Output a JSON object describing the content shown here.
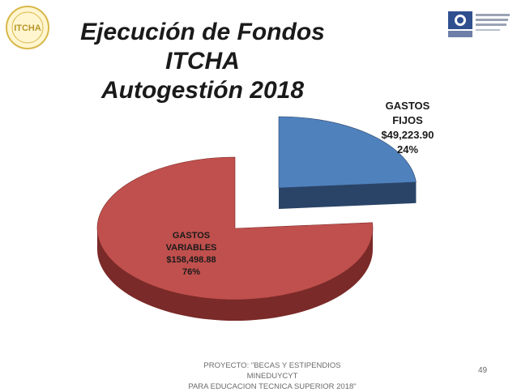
{
  "slide": {
    "title_line1": "Ejecución de Fondos ITCHA",
    "title_line2": "Autogestión 2018",
    "footer_line1": "PROYECTO: \"BECAS Y ESTIPENDIOS MINEDUYCYT",
    "footer_line2": "PARA EDUCACION TECNICA SUPERIOR 2018\"",
    "page_number": "49",
    "logo_left_text": "ITCHA"
  },
  "chart_data": {
    "type": "pie",
    "title": "",
    "slices": [
      {
        "label_line1": "GASTOS",
        "label_line2": "FIJOS",
        "value": 49223.9,
        "value_label": "$49,223.90",
        "percent_label": "24%",
        "color": "#4f81bd",
        "dark": "#2a4468"
      },
      {
        "label_line1": "GASTOS",
        "label_line2": "VARIABLES",
        "value": 158498.88,
        "value_label": "$158,498.88",
        "percent_label": "76%",
        "color": "#c0504d",
        "dark": "#7a2a28"
      }
    ]
  }
}
